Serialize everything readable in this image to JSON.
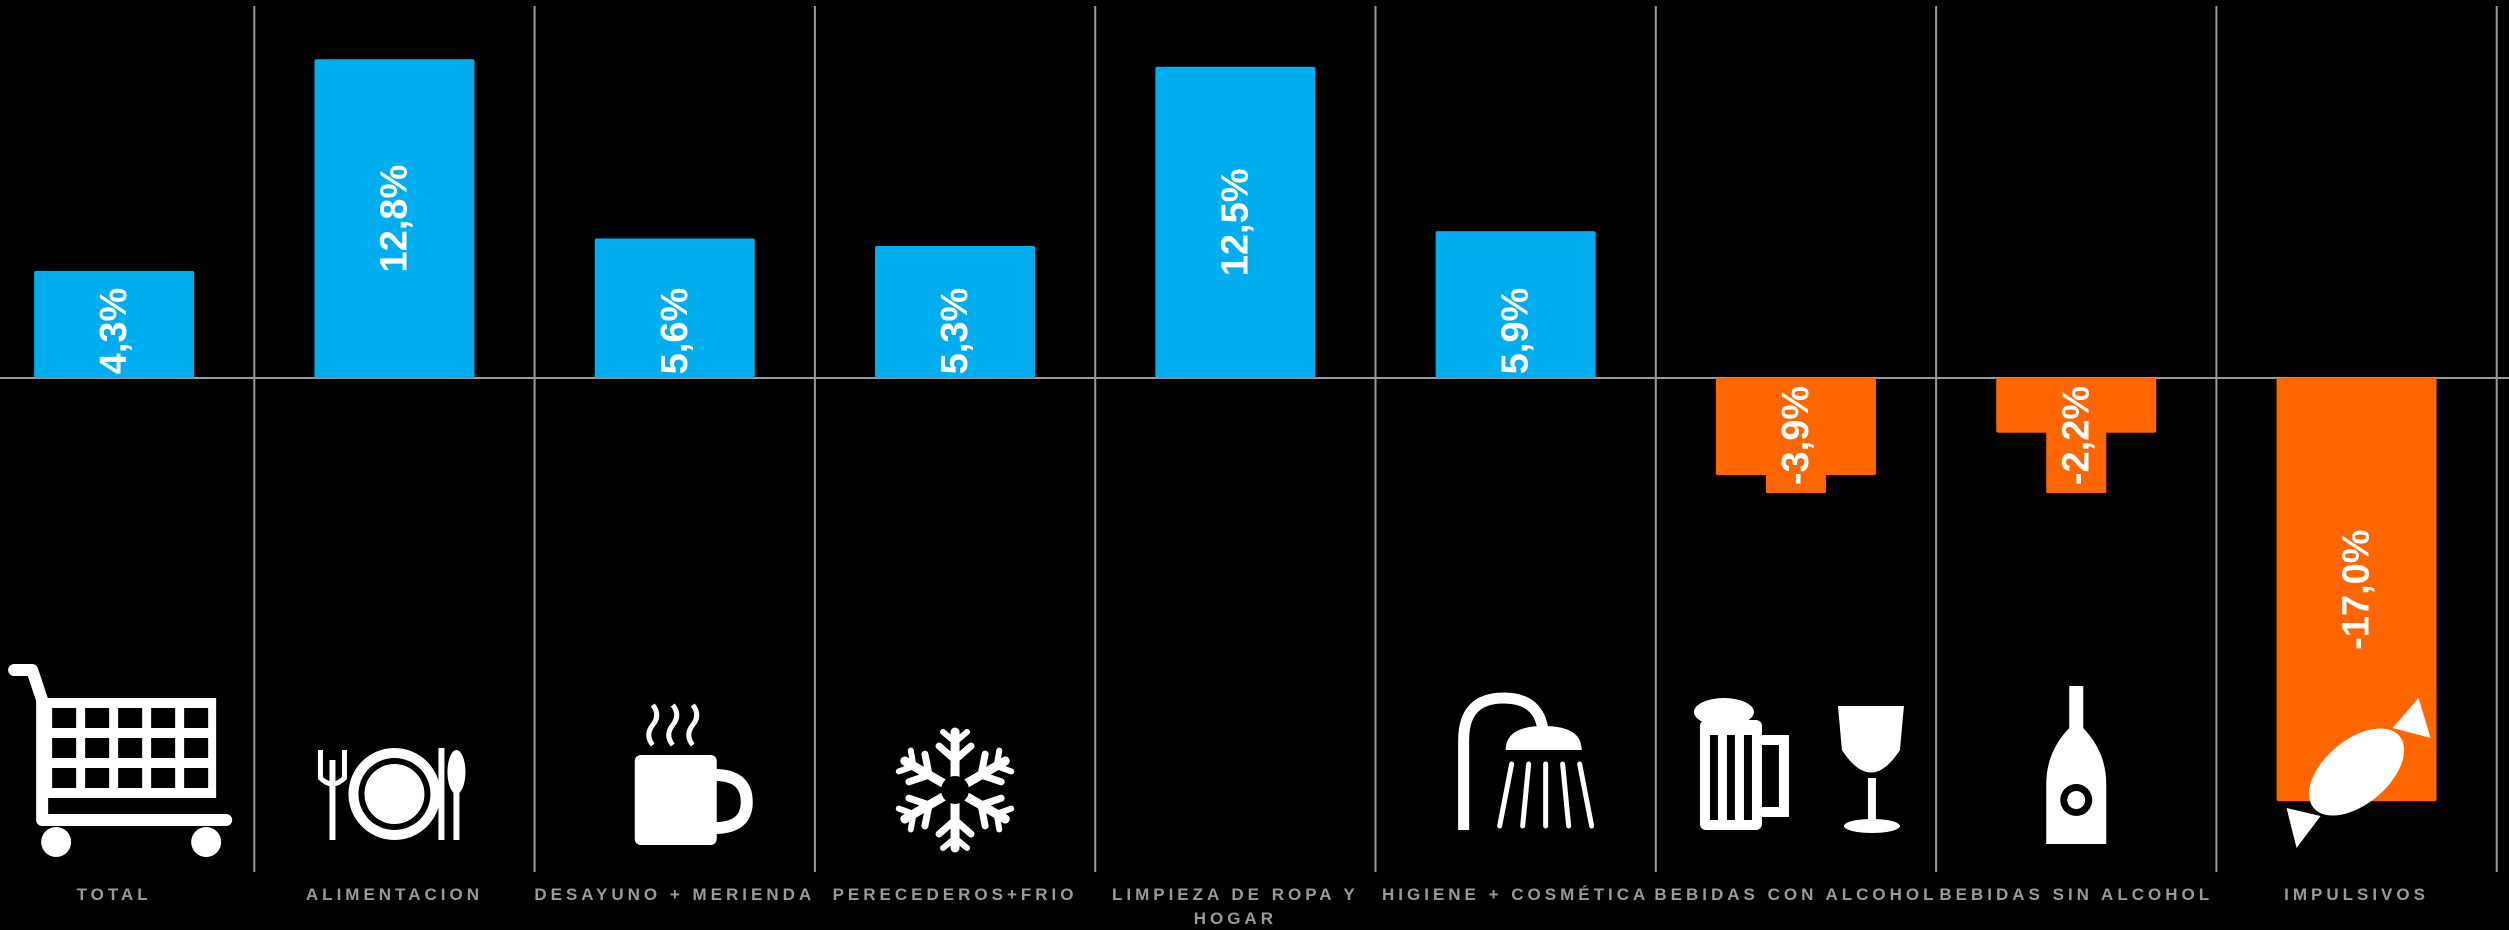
{
  "chart_data": {
    "type": "bar",
    "categories": [
      "TOTAL",
      "ALIMENTACION",
      "DESAYUNO + MERIENDA",
      "PERECEDEROS+FRIO",
      "LIMPIEZA DE ROPA Y HOGAR",
      "HIGIENE + COSMÉTICA",
      "BEBIDAS CON ALCOHOL",
      "BEBIDAS SIN ALCOHOL",
      "IMPULSIVOS"
    ],
    "values": [
      4.3,
      12.8,
      5.6,
      5.3,
      12.5,
      5.9,
      -3.9,
      -2.2,
      -17.0
    ],
    "value_labels": [
      "4,3%",
      "12,8%",
      "5,6%",
      "5,3%",
      "12,5%",
      "5,9%",
      "-3,9%",
      "-2,2%",
      "-17,0%"
    ],
    "icons": [
      "shopping-cart-icon",
      "plate-cutlery-icon",
      "hot-cup-icon",
      "snowflake-icon",
      "bucket-broom-icon",
      "shower-icon",
      "beer-wine-icon",
      "bottle-icon",
      "candy-icon"
    ],
    "colors": {
      "positive": "#00AEEF",
      "negative": "#FF6600",
      "background": "#000000",
      "grid": "#9a9a9a",
      "label": "#9a9a9a",
      "icon": "#ffffff"
    },
    "grid": true,
    "legend": "none",
    "title": "",
    "xlabel": "",
    "ylabel": ""
  }
}
